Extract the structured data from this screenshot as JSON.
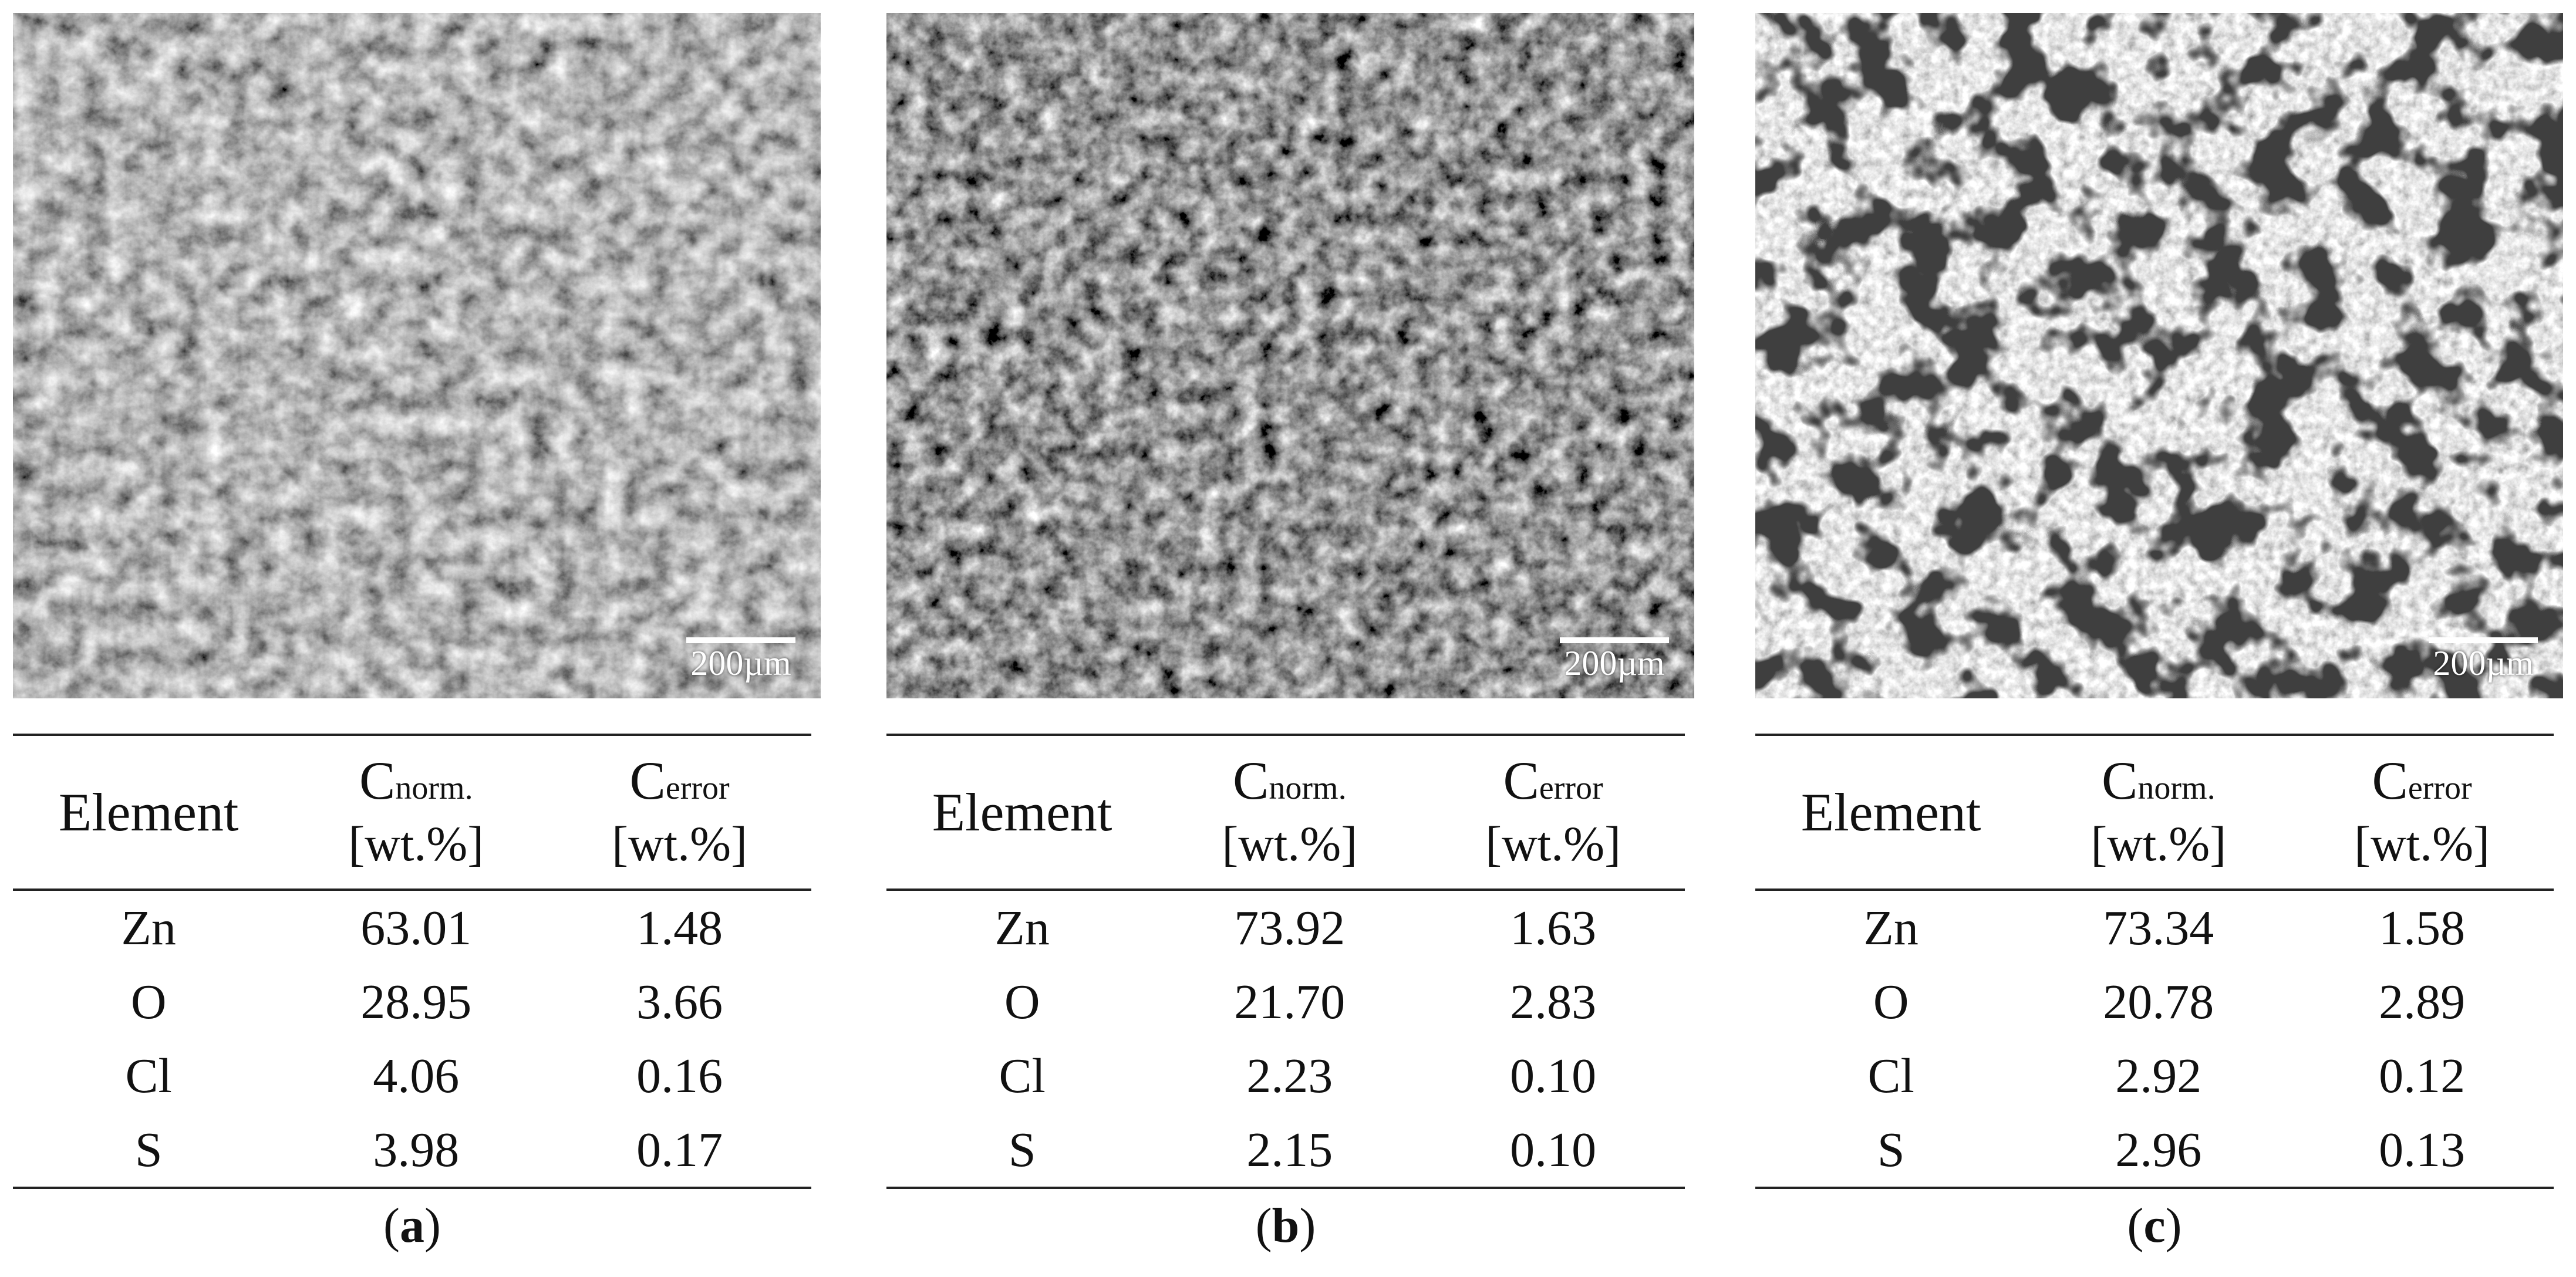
{
  "panels": [
    {
      "scale_bar": "200µm",
      "headers": {
        "element": "Element",
        "norm_c": "C",
        "norm_sub": "norm.",
        "norm_unit": "[wt.%]",
        "err_c": "C",
        "err_sub": "error",
        "err_unit": "[wt.%]"
      },
      "rows": [
        {
          "element": "Zn",
          "norm": "63.01",
          "error": "1.48"
        },
        {
          "element": "O",
          "norm": "28.95",
          "error": "3.66"
        },
        {
          "element": "Cl",
          "norm": "4.06",
          "error": "0.16"
        },
        {
          "element": "S",
          "norm": "3.98",
          "error": "0.17"
        }
      ],
      "caption_open": "(",
      "caption_letter": "a",
      "caption_close": ")"
    },
    {
      "scale_bar": "200µm",
      "headers": {
        "element": "Element",
        "norm_c": "C",
        "norm_sub": "norm.",
        "norm_unit": "[wt.%]",
        "err_c": "C",
        "err_sub": "error",
        "err_unit": "[wt.%]"
      },
      "rows": [
        {
          "element": "Zn",
          "norm": "73.92",
          "error": "1.63"
        },
        {
          "element": "O",
          "norm": "21.70",
          "error": "2.83"
        },
        {
          "element": "Cl",
          "norm": "2.23",
          "error": "0.10"
        },
        {
          "element": "S",
          "norm": "2.15",
          "error": "0.10"
        }
      ],
      "caption_open": "(",
      "caption_letter": "b",
      "caption_close": ")"
    },
    {
      "scale_bar": "200µm",
      "headers": {
        "element": "Element",
        "norm_c": "C",
        "norm_sub": "norm.",
        "norm_unit": "[wt.%]",
        "err_c": "C",
        "err_sub": "error",
        "err_unit": "[wt.%]"
      },
      "rows": [
        {
          "element": "Zn",
          "norm": "73.34",
          "error": "1.58"
        },
        {
          "element": "O",
          "norm": "20.78",
          "error": "2.89"
        },
        {
          "element": "Cl",
          "norm": "2.92",
          "error": "0.12"
        },
        {
          "element": "S",
          "norm": "2.96",
          "error": "0.13"
        }
      ],
      "caption_open": "(",
      "caption_letter": "c",
      "caption_close": ")"
    }
  ]
}
